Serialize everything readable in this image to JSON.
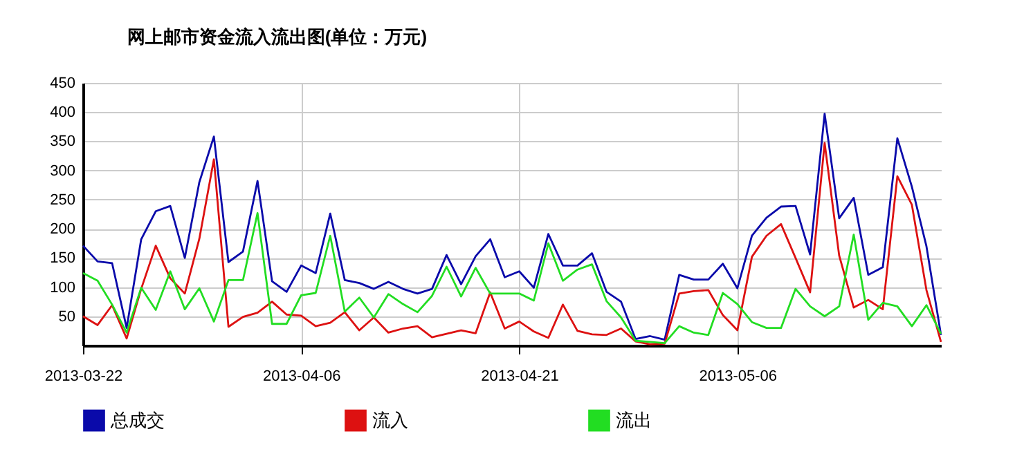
{
  "chart_data": {
    "type": "line",
    "title": "网上邮市资金流入流出图(单位：万元)",
    "x": [
      "2013-03-22",
      "2013-03-23",
      "2013-03-24",
      "2013-03-25",
      "2013-03-26",
      "2013-03-27",
      "2013-03-28",
      "2013-03-29",
      "2013-03-30",
      "2013-03-31",
      "2013-04-01",
      "2013-04-02",
      "2013-04-03",
      "2013-04-04",
      "2013-04-05",
      "2013-04-06",
      "2013-04-07",
      "2013-04-08",
      "2013-04-09",
      "2013-04-10",
      "2013-04-11",
      "2013-04-12",
      "2013-04-13",
      "2013-04-14",
      "2013-04-15",
      "2013-04-16",
      "2013-04-17",
      "2013-04-18",
      "2013-04-19",
      "2013-04-20",
      "2013-04-21",
      "2013-04-22",
      "2013-04-23",
      "2013-04-24",
      "2013-04-25",
      "2013-04-26",
      "2013-04-27",
      "2013-04-28",
      "2013-04-29",
      "2013-04-30",
      "2013-05-01",
      "2013-05-02",
      "2013-05-03",
      "2013-05-04",
      "2013-05-05",
      "2013-05-06",
      "2013-05-07",
      "2013-05-08",
      "2013-05-09",
      "2013-05-10",
      "2013-05-11",
      "2013-05-12",
      "2013-05-13",
      "2013-05-14",
      "2013-05-15",
      "2013-05-16",
      "2013-05-17",
      "2013-05-18",
      "2013-05-19",
      "2013-05-20"
    ],
    "series": [
      {
        "name": "总成交",
        "color": "#0a0aaa",
        "values": [
          171,
          144,
          141,
          30,
          182,
          230,
          239,
          150,
          280,
          358,
          143,
          161,
          282,
          110,
          92,
          137,
          124,
          226,
          112,
          107,
          97,
          109,
          97,
          89,
          97,
          155,
          105,
          153,
          182,
          117,
          127,
          99,
          191,
          137,
          137,
          158,
          92,
          75,
          11,
          16,
          10,
          121,
          113,
          113,
          140,
          98,
          188,
          219,
          238,
          239,
          156,
          397,
          218,
          253,
          121,
          134,
          355,
          272,
          170,
          18
        ]
      },
      {
        "name": "流入",
        "color": "#dd1111",
        "values": [
          50,
          35,
          69,
          12,
          97,
          171,
          115,
          89,
          183,
          319,
          32,
          49,
          56,
          75,
          53,
          51,
          33,
          39,
          57,
          26,
          48,
          22,
          29,
          33,
          14,
          20,
          26,
          21,
          91,
          29,
          41,
          24,
          13,
          70,
          25,
          19,
          18,
          29,
          7,
          2,
          3,
          89,
          93,
          95,
          52,
          26,
          152,
          188,
          208,
          150,
          91,
          347,
          154,
          65,
          78,
          62,
          290,
          241,
          95,
          6
        ]
      },
      {
        "name": "流出",
        "color": "#22dd22",
        "values": [
          124,
          111,
          70,
          22,
          99,
          61,
          127,
          62,
          98,
          41,
          112,
          112,
          227,
          37,
          37,
          86,
          90,
          188,
          58,
          82,
          48,
          88,
          71,
          57,
          85,
          135,
          84,
          133,
          89,
          89,
          89,
          77,
          175,
          111,
          130,
          139,
          76,
          48,
          8,
          6,
          4,
          33,
          22,
          18,
          90,
          71,
          40,
          30,
          30,
          97,
          67,
          50,
          67,
          190,
          44,
          73,
          67,
          33,
          69,
          20
        ]
      }
    ],
    "xlim": [
      "2013-03-22",
      "2013-05-20"
    ],
    "xticks": [
      "2013-03-22",
      "2013-04-06",
      "2013-04-21",
      "2013-05-06"
    ],
    "ylim": [
      0,
      450
    ],
    "yticks": [
      50,
      100,
      150,
      200,
      250,
      300,
      350,
      400,
      450
    ],
    "grid": true,
    "legend": "bottom",
    "marker": "none",
    "line_style": "solid"
  }
}
